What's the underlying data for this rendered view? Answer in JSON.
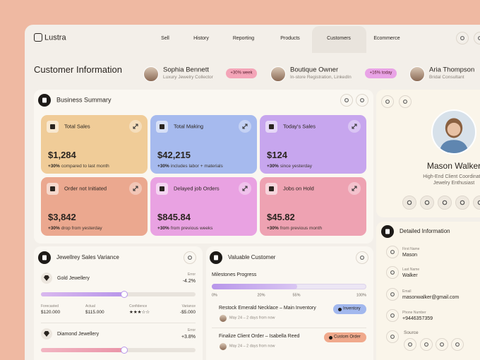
{
  "header": {
    "logo": "Lustra",
    "nav": [
      "Sell",
      "History",
      "Reporting",
      "Products",
      "Customers",
      "Ecommerce"
    ]
  },
  "customer_info": {
    "title": "Customer Information",
    "people": [
      {
        "name": "Sophia Bennett",
        "role": "Luxury Jewelry Collector",
        "badge": "+30% week"
      },
      {
        "name": "Boutique Owner",
        "role": "In-store Registration, LinkedIn",
        "badge": "+16% today"
      },
      {
        "name": "Aria Thompson",
        "role": "Bridal Consultant"
      }
    ]
  },
  "business_summary": {
    "title": "Business Summary",
    "cards": [
      {
        "label": "Total Sales",
        "value": "$1,284",
        "change": "+30%",
        "note": "compared to last month"
      },
      {
        "label": "Total Making",
        "value": "$42,215",
        "change": "+30%",
        "note": "includes labor + materials"
      },
      {
        "label": "Today's Sales",
        "value": "$124",
        "change": "+30%",
        "note": "since yesterday"
      },
      {
        "label": "Order not Initiated",
        "value": "$3,842",
        "change": "+30%",
        "note": "drop from yesterday"
      },
      {
        "label": "Delayed job Orders",
        "value": "$845.84",
        "change": "+30%",
        "note": "from previous weeks"
      },
      {
        "label": "Jobs on Hold",
        "value": "$45.82",
        "change": "+30%",
        "note": "from previous month"
      }
    ]
  },
  "profile": {
    "name": "Mason Walker",
    "roles": [
      "High-End Client Coordinator",
      "Jewelry Enthusiast"
    ]
  },
  "detailed_info": {
    "title": "Detailed Information",
    "fields": [
      {
        "label": "First Name",
        "value": "Mason"
      },
      {
        "label": "Last Name",
        "value": "Walker"
      },
      {
        "label": "Email",
        "value": "masonwalker@gmail.com"
      },
      {
        "label": "Phone Number",
        "value": "+9446357359"
      }
    ],
    "source_label": "Source"
  },
  "sales_variance": {
    "title": "Jewellrey Sales Variance",
    "items": [
      {
        "name": "Gold Jewellery",
        "error_label": "Error",
        "error": "-4.2%",
        "stats": [
          {
            "label": "Forecasted",
            "value": "$120.000"
          },
          {
            "label": "Actual",
            "value": "$115.000"
          },
          {
            "label": "Confidence",
            "value": "★★★☆☆"
          },
          {
            "label": "Variance",
            "value": "-$5.000"
          }
        ]
      },
      {
        "name": "Diamond Jewellery",
        "error_label": "Error",
        "error": "+3.8%"
      }
    ]
  },
  "valuable_customer": {
    "title": "Valuable Customer",
    "milestones_label": "Milestones Progress",
    "milestone_ticks": [
      "0%",
      "20%",
      "55%",
      "100%"
    ],
    "tasks": [
      {
        "title": "Restock Emerald Necklace – Main Inventory",
        "date": "May 24 – 2 days from now",
        "tag": "Inventory"
      },
      {
        "title": "Finalize Client Order – Isabella Reed",
        "date": "May 24 – 2 days from now",
        "tag": "Custom Order"
      }
    ]
  }
}
